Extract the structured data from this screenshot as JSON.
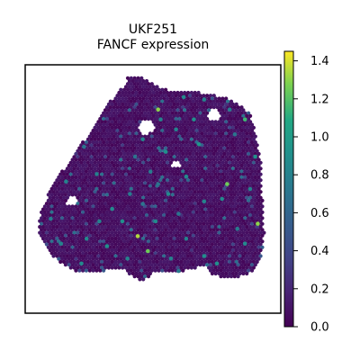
{
  "chart_data": {
    "type": "scatter",
    "title_line1": "UKF251",
    "title_line2": "FANCF expression",
    "xlabel": "",
    "ylabel": "",
    "colormap": "viridis",
    "colorbar": {
      "range": [
        0.0,
        1.45
      ],
      "ticks": [
        "0.0",
        "0.2",
        "0.4",
        "0.6",
        "0.8",
        "1.0",
        "1.2",
        "1.4"
      ],
      "tick_values": [
        0.0,
        0.2,
        0.4,
        0.6,
        0.8,
        1.0,
        1.2,
        1.4
      ]
    },
    "grid": false,
    "tissue_polygon": [
      [
        0.395,
        0.075
      ],
      [
        0.4,
        0.05
      ],
      [
        0.435,
        0.045
      ],
      [
        0.46,
        0.055
      ],
      [
        0.52,
        0.09
      ],
      [
        0.55,
        0.1
      ],
      [
        0.6,
        0.11
      ],
      [
        0.65,
        0.1
      ],
      [
        0.7,
        0.115
      ],
      [
        0.78,
        0.13
      ],
      [
        0.84,
        0.16
      ],
      [
        0.88,
        0.2
      ],
      [
        0.9,
        0.27
      ],
      [
        0.92,
        0.38
      ],
      [
        0.925,
        0.45
      ],
      [
        0.93,
        0.6
      ],
      [
        0.935,
        0.68
      ],
      [
        0.925,
        0.76
      ],
      [
        0.9,
        0.83
      ],
      [
        0.86,
        0.85
      ],
      [
        0.78,
        0.86
      ],
      [
        0.73,
        0.84
      ],
      [
        0.7,
        0.81
      ],
      [
        0.66,
        0.82
      ],
      [
        0.62,
        0.83
      ],
      [
        0.55,
        0.84
      ],
      [
        0.5,
        0.84
      ],
      [
        0.46,
        0.87
      ],
      [
        0.42,
        0.85
      ],
      [
        0.38,
        0.82
      ],
      [
        0.3,
        0.83
      ],
      [
        0.22,
        0.84
      ],
      [
        0.14,
        0.8
      ],
      [
        0.08,
        0.74
      ],
      [
        0.05,
        0.66
      ],
      [
        0.06,
        0.6
      ],
      [
        0.1,
        0.5
      ],
      [
        0.15,
        0.42
      ],
      [
        0.2,
        0.35
      ],
      [
        0.26,
        0.26
      ],
      [
        0.32,
        0.16
      ]
    ],
    "gaps": [
      [
        0.475,
        0.25,
        0.03
      ],
      [
        0.74,
        0.2,
        0.025
      ],
      [
        0.18,
        0.55,
        0.02
      ],
      [
        0.59,
        0.4,
        0.015
      ]
    ],
    "highlight_spots": [
      [
        0.52,
        0.18,
        1.3
      ],
      [
        0.86,
        0.22,
        1.15
      ],
      [
        0.79,
        0.48,
        1.25
      ],
      [
        0.91,
        0.64,
        1.3
      ],
      [
        0.44,
        0.69,
        1.35
      ],
      [
        0.48,
        0.75,
        1.25
      ],
      [
        0.55,
        0.35,
        0.9
      ],
      [
        0.63,
        0.45,
        0.85
      ],
      [
        0.7,
        0.55,
        0.8
      ],
      [
        0.68,
        0.32,
        0.95
      ],
      [
        0.49,
        0.43,
        0.75
      ],
      [
        0.77,
        0.54,
        0.85
      ],
      [
        0.9,
        0.37,
        0.9
      ],
      [
        0.82,
        0.28,
        0.7
      ],
      [
        0.59,
        0.26,
        0.8
      ],
      [
        0.66,
        0.22,
        0.9
      ],
      [
        0.46,
        0.56,
        0.7
      ],
      [
        0.56,
        0.52,
        0.85
      ],
      [
        0.57,
        0.78,
        0.8
      ],
      [
        0.6,
        0.83,
        0.75
      ],
      [
        0.7,
        0.77,
        0.9
      ],
      [
        0.63,
        0.7,
        0.8
      ],
      [
        0.83,
        0.66,
        0.75
      ],
      [
        0.34,
        0.58,
        0.85
      ],
      [
        0.41,
        0.52,
        0.75
      ],
      [
        0.38,
        0.63,
        0.9
      ],
      [
        0.28,
        0.44,
        0.8
      ],
      [
        0.24,
        0.7,
        0.85
      ],
      [
        0.32,
        0.73,
        0.9
      ],
      [
        0.29,
        0.63,
        0.8
      ],
      [
        0.51,
        0.63,
        0.85
      ],
      [
        0.43,
        0.37,
        0.7
      ],
      [
        0.53,
        0.22,
        0.8
      ],
      [
        0.62,
        0.13,
        0.85
      ],
      [
        0.7,
        0.14,
        0.8
      ],
      [
        0.8,
        0.18,
        0.75
      ],
      [
        0.23,
        0.33,
        0.7
      ],
      [
        0.16,
        0.47,
        0.8
      ],
      [
        0.1,
        0.62,
        0.75
      ],
      [
        0.14,
        0.72,
        0.8
      ],
      [
        0.22,
        0.8,
        0.85
      ],
      [
        0.4,
        0.78,
        0.8
      ],
      [
        0.75,
        0.8,
        0.9
      ],
      [
        0.86,
        0.72,
        0.85
      ],
      [
        0.88,
        0.5,
        0.8
      ],
      [
        0.52,
        0.48,
        0.7
      ],
      [
        0.46,
        0.3,
        0.8
      ],
      [
        0.6,
        0.6,
        0.7
      ]
    ]
  }
}
